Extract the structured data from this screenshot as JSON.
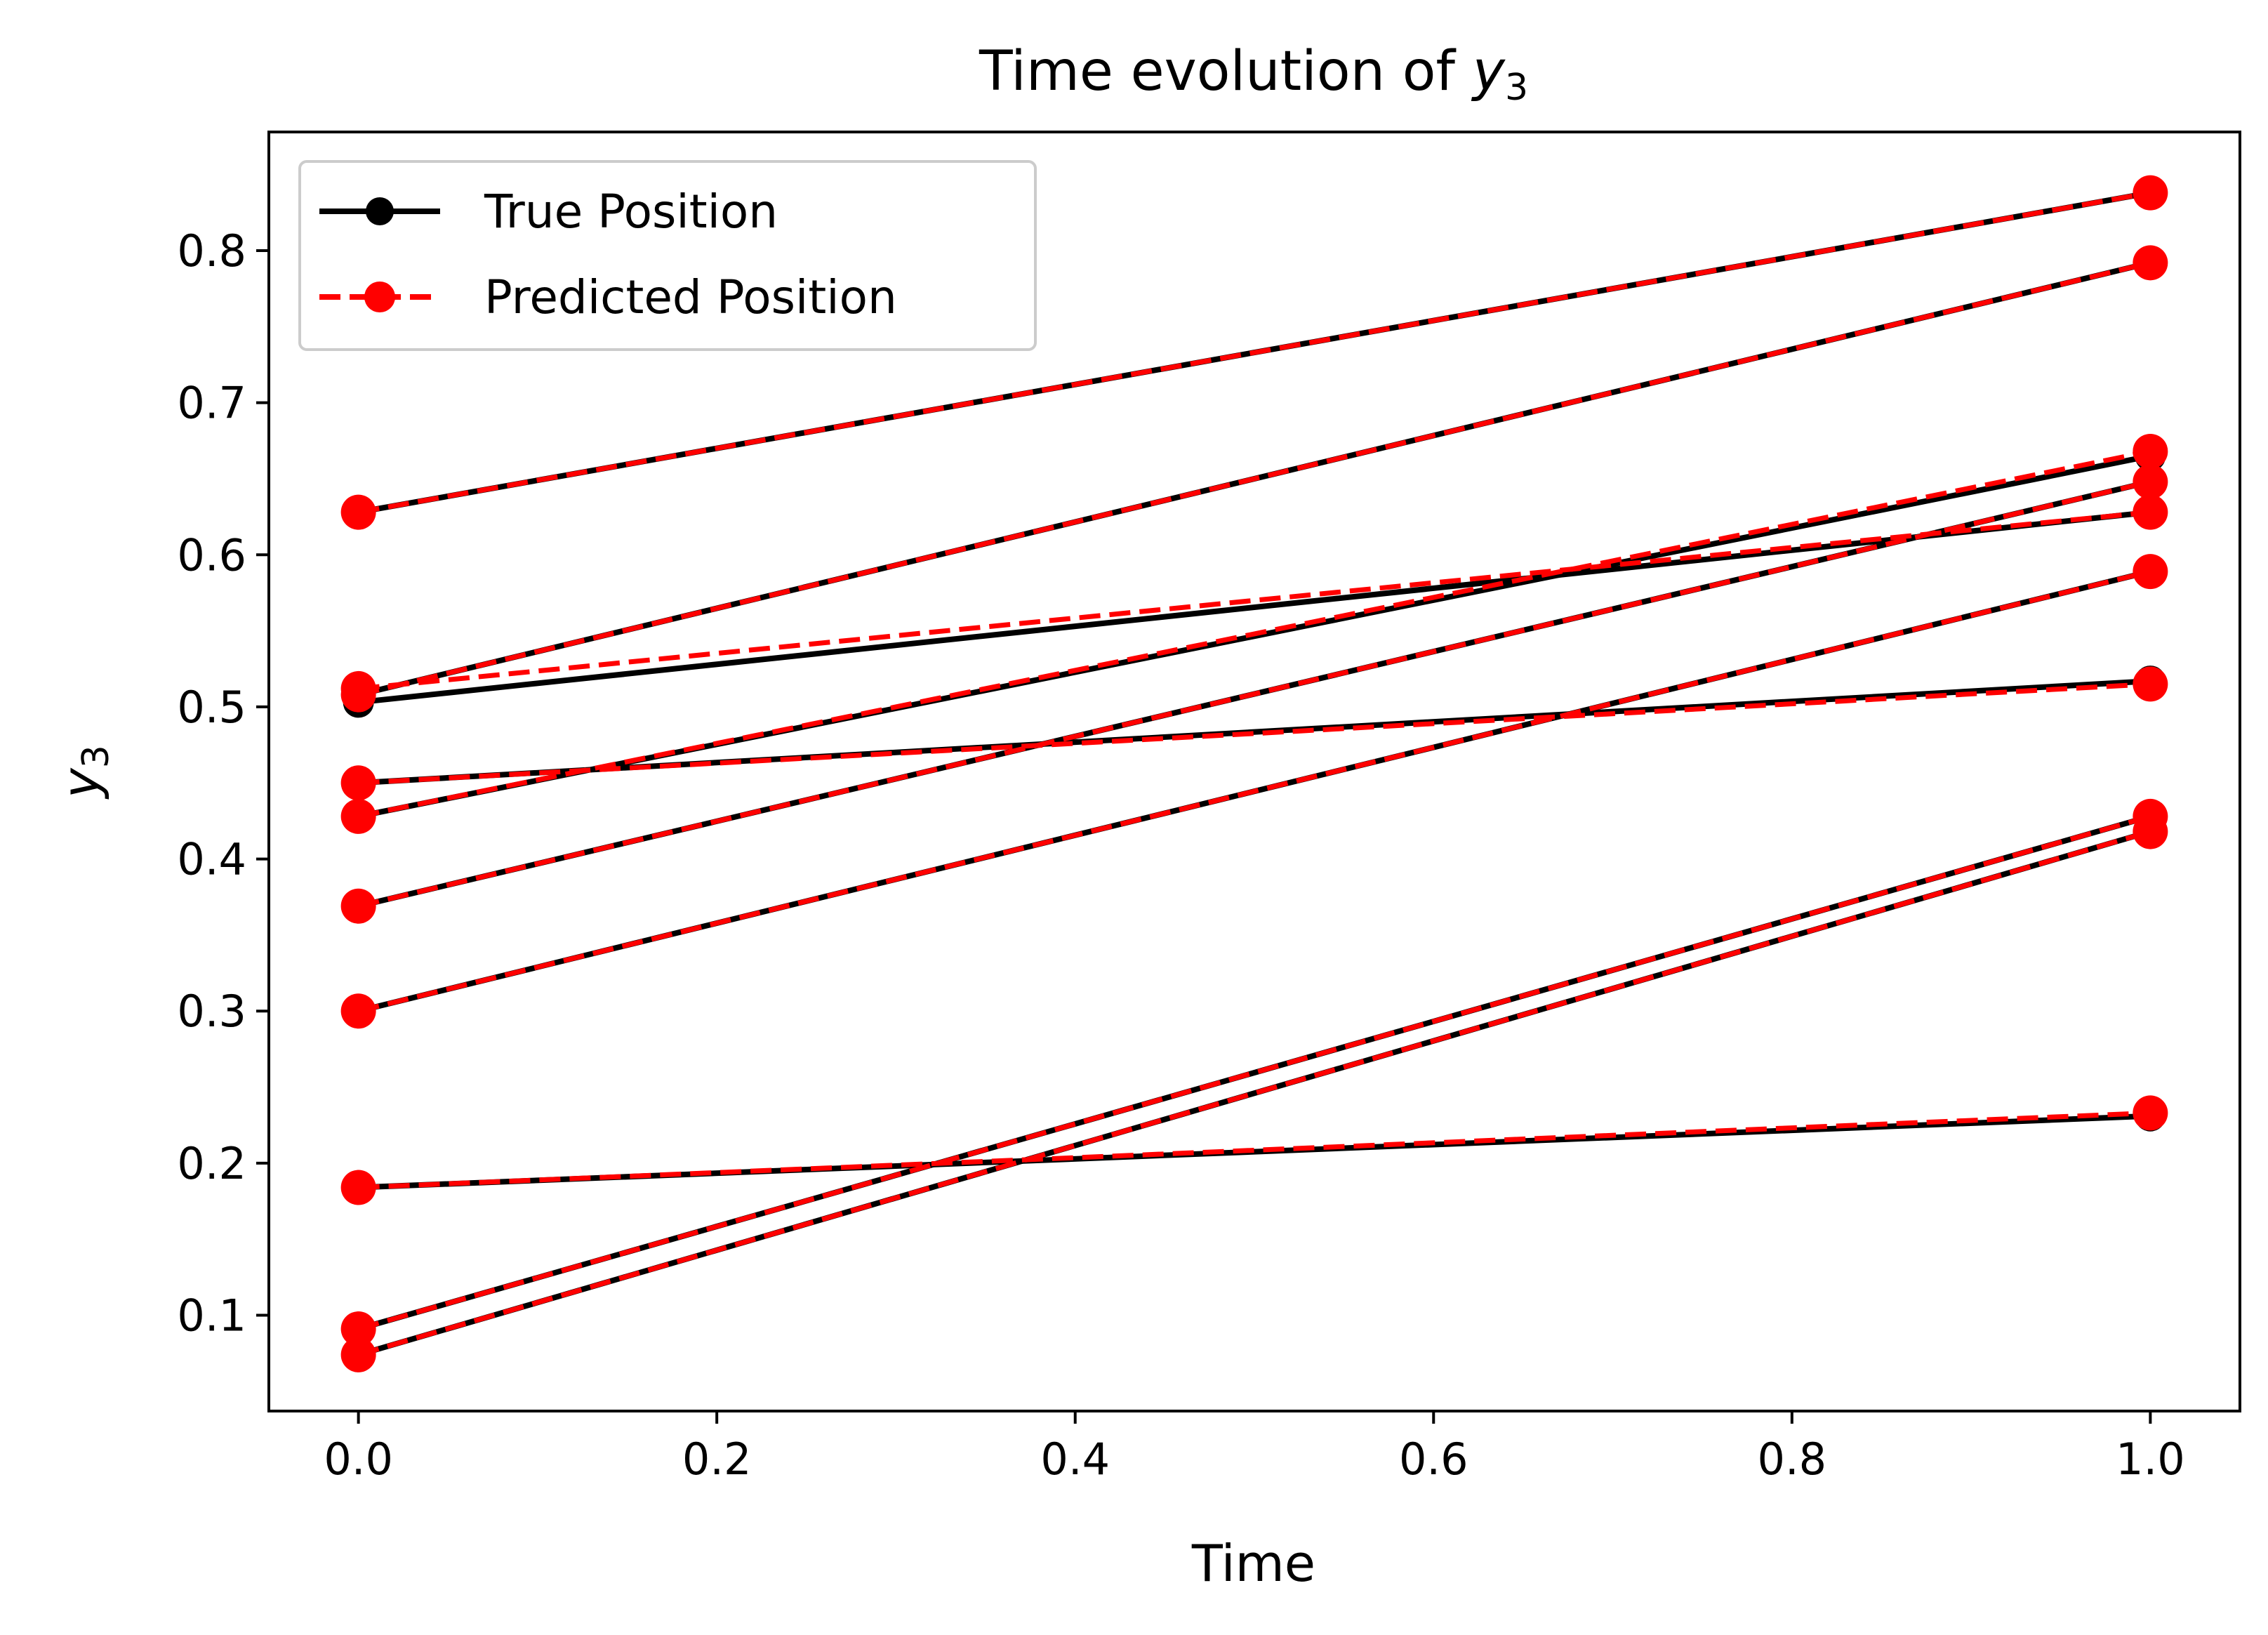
{
  "chart_data": {
    "type": "line",
    "title": "Time evolution of ",
    "title_var": "y",
    "title_sub": "3",
    "xlabel": "Time",
    "ylabel_var": "y",
    "ylabel_sub": "3",
    "xlim": [
      -0.05,
      1.05
    ],
    "ylim": [
      0.037,
      0.878
    ],
    "xticks": [
      0.0,
      0.2,
      0.4,
      0.6,
      0.8,
      1.0
    ],
    "xtick_labels": [
      "0.0",
      "0.2",
      "0.4",
      "0.6",
      "0.8",
      "1.0"
    ],
    "yticks": [
      0.1,
      0.2,
      0.3,
      0.4,
      0.5,
      0.6,
      0.7,
      0.8
    ],
    "ytick_labels": [
      "0.1",
      "0.2",
      "0.3",
      "0.4",
      "0.5",
      "0.6",
      "0.7",
      "0.8"
    ],
    "grid": false,
    "legend_position": "top-left",
    "legend": [
      {
        "label": "True Position",
        "color": "#000000",
        "style": "solid"
      },
      {
        "label": "Predicted Position",
        "color": "#ff0000",
        "style": "dashed"
      }
    ],
    "x": [
      0.0,
      1.0
    ],
    "trajectories": [
      {
        "true": [
          0.628,
          0.838
        ],
        "predicted": [
          0.628,
          0.838
        ]
      },
      {
        "true": [
          0.508,
          0.792
        ],
        "predicted": [
          0.508,
          0.792
        ]
      },
      {
        "true": [
          0.503,
          0.628
        ],
        "predicted": [
          0.512,
          0.628
        ]
      },
      {
        "true": [
          0.428,
          0.665
        ],
        "predicted": [
          0.428,
          0.668
        ]
      },
      {
        "true": [
          0.45,
          0.517
        ],
        "predicted": [
          0.45,
          0.515
        ]
      },
      {
        "true": [
          0.369,
          0.648
        ],
        "predicted": [
          0.369,
          0.648
        ]
      },
      {
        "true": [
          0.3,
          0.589
        ],
        "predicted": [
          0.3,
          0.589
        ]
      },
      {
        "true": [
          0.184,
          0.231
        ],
        "predicted": [
          0.184,
          0.233
        ]
      },
      {
        "true": [
          0.091,
          0.428
        ],
        "predicted": [
          0.091,
          0.428
        ]
      },
      {
        "true": [
          0.074,
          0.418
        ],
        "predicted": [
          0.074,
          0.418
        ]
      }
    ]
  }
}
